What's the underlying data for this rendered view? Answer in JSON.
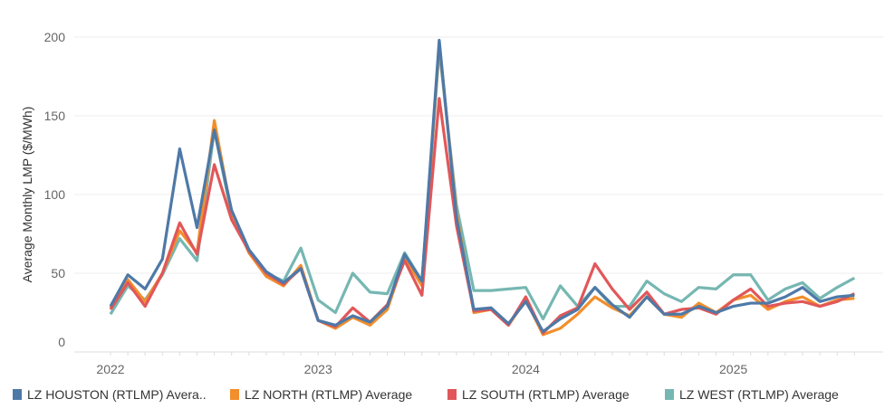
{
  "chart_data": {
    "type": "line",
    "title": "",
    "xlabel": "",
    "ylabel": "Average Monthly LMP ($/MWh)",
    "ylim": [
      0,
      200
    ],
    "yticks": [
      0,
      50,
      100,
      150,
      200
    ],
    "xticks": [
      "2022",
      "2023",
      "2024",
      "2025"
    ],
    "x_start": "2022-01",
    "x_frequency": "monthly",
    "grid": true,
    "legend_position": "bottom",
    "series": [
      {
        "name": "LZ HOUSTON (RTLMP) Avera..",
        "color": "#4e79a7",
        "values": [
          29,
          49,
          40,
          59,
          129,
          79,
          141,
          90,
          65,
          51,
          44,
          53,
          20,
          17,
          23,
          19,
          29,
          62,
          45,
          198,
          85,
          27,
          28,
          18,
          32,
          13,
          21,
          27,
          41,
          30,
          22,
          35,
          24,
          24,
          29,
          25,
          29,
          31,
          31,
          35,
          41,
          32,
          35,
          36
        ]
      },
      {
        "name": "LZ NORTH (RTLMP) Average",
        "color": "#f28e2b",
        "values": [
          28,
          46,
          32,
          50,
          77,
          63,
          147,
          88,
          63,
          48,
          42,
          55,
          20,
          15,
          22,
          17,
          27,
          60,
          42,
          196,
          88,
          25,
          27,
          17,
          33,
          11,
          15,
          24,
          35,
          28,
          23,
          35,
          24,
          22,
          31,
          25,
          33,
          36,
          27,
          32,
          35,
          29,
          33,
          34
        ]
      },
      {
        "name": "LZ SOUTH (RTLMP) Average",
        "color": "#e15759",
        "values": [
          27,
          44,
          29,
          50,
          82,
          62,
          119,
          84,
          64,
          50,
          43,
          53,
          20,
          16,
          28,
          19,
          30,
          58,
          36,
          161,
          80,
          26,
          27,
          17,
          35,
          12,
          23,
          28,
          56,
          40,
          27,
          38,
          24,
          27,
          28,
          24,
          33,
          40,
          29,
          31,
          32,
          29,
          32,
          37
        ]
      },
      {
        "name": "LZ WEST (RTLMP) Average",
        "color": "#76b7b2",
        "values": [
          24,
          42,
          33,
          49,
          72,
          58,
          141,
          87,
          65,
          50,
          45,
          66,
          33,
          25,
          50,
          38,
          37,
          63,
          45,
          192,
          93,
          39,
          39,
          40,
          41,
          21,
          42,
          29,
          41,
          29,
          29,
          45,
          37,
          32,
          41,
          40,
          49,
          49,
          33,
          40,
          44,
          34,
          41,
          47
        ]
      }
    ]
  }
}
